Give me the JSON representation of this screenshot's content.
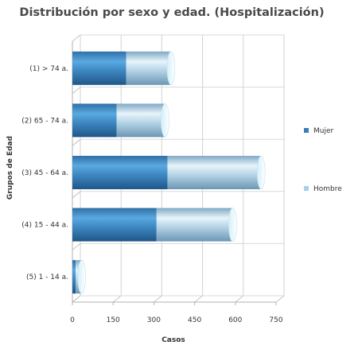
{
  "chart_data": {
    "type": "bar",
    "orientation": "horizontal",
    "stacked": true,
    "title": "Distribución por sexo y edad. (Hospitalización)",
    "xlabel": "Casos",
    "ylabel": "Grupos de Edad",
    "xlim": [
      0,
      750
    ],
    "xticks": [
      "0",
      "150",
      "300",
      "450",
      "600",
      "750"
    ],
    "grid": true,
    "legend_position": "right",
    "categories": [
      "(1) > 74 a.",
      "(2) 65 - 74 a.",
      "(3) 45 - 64 a.",
      "(4) 15 - 44 a.",
      "(5) 1 - 14 a."
    ],
    "series": [
      {
        "name": "Mujer",
        "color": "#3f8ac4",
        "values": [
          198,
          163,
          350,
          310,
          12
        ]
      },
      {
        "name": "Hombre",
        "color": "#a9d4ee",
        "values": [
          165,
          178,
          345,
          280,
          22
        ]
      }
    ]
  }
}
